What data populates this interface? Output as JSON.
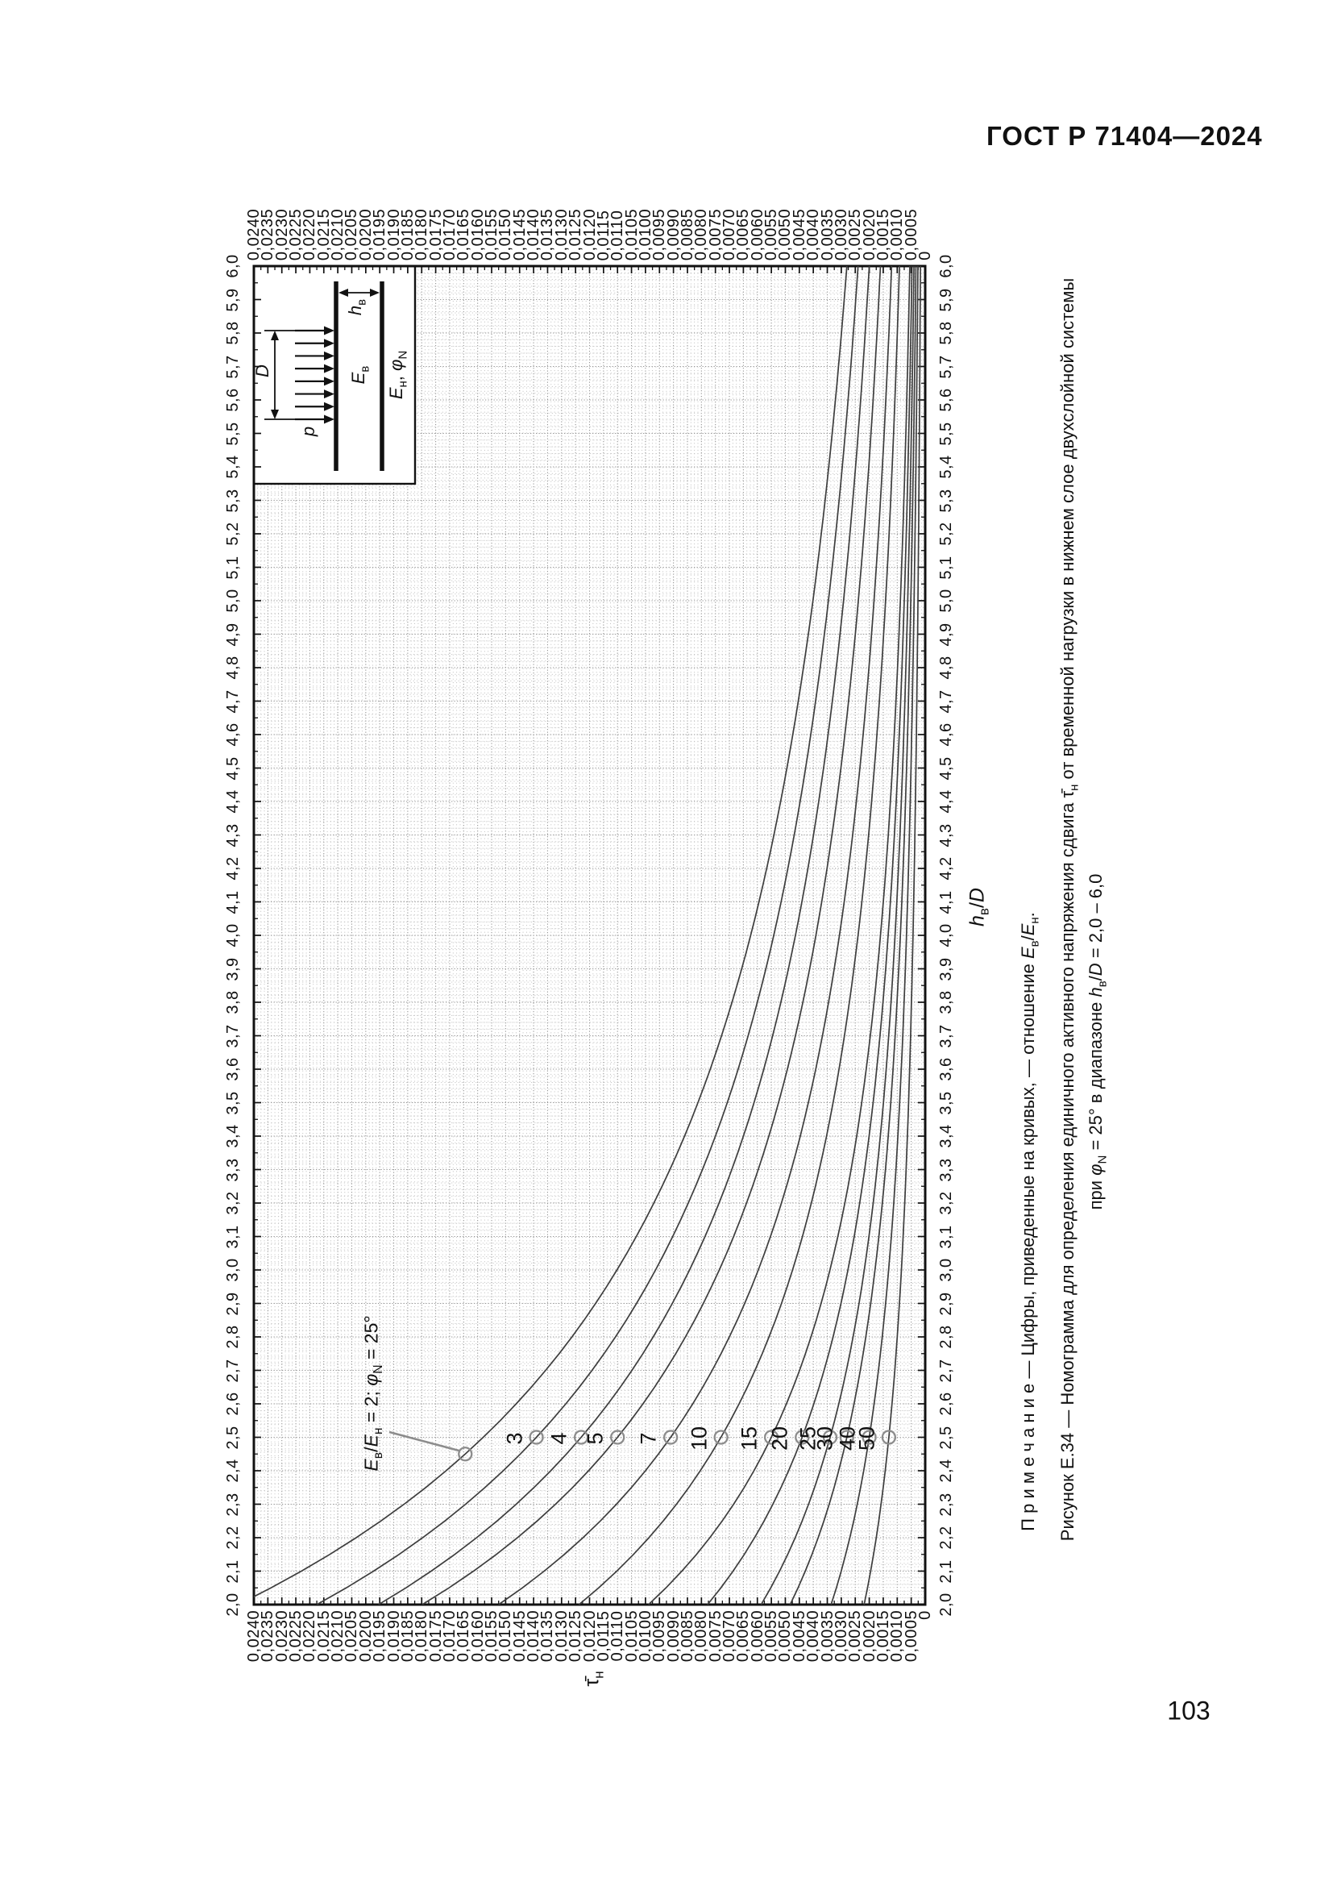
{
  "page": {
    "header": "ГОСТ Р 71404—2024",
    "page_number": "103"
  },
  "figure": {
    "note": "П р и м е ч а н и е — Цифры, приведенные на кривых, — отношение *E*_{в}/*E*_{н}.",
    "caption_line1": "Рисунок Е.34 — Номограмма для определения единичного активного напряжения сдвига  τ̄_{н}  от временной нагрузки в нижнем слое двухслойной системы",
    "caption_line2": "при *φ*_{N} = 25° в диапазоне *h*_{в}/*D* = 2,0 – 6,0",
    "annotation": "*E*_{в}/*E*_{н} = 2; *φ*_{N} = 25°"
  },
  "inset": {
    "load_label": "*p*",
    "diameter_label": "*D*",
    "upper_layer_label": "*E*_{в}",
    "lower_layer_label": "*E*_{н}, *φ*_{N}",
    "upper_thickness_label": "*h*_{в}"
  },
  "chart_data": {
    "type": "line",
    "orientation": "figure rotated 90° counterclockwise on page",
    "grid": "fine dotted",
    "legend_position": "labels on curves",
    "x_axis": {
      "label": "*h*_{в}/*D*",
      "min": 2.0,
      "max": 6.0,
      "step": 0.1,
      "tick_labels": [
        "6,0",
        "5,9",
        "5,8",
        "5,7",
        "5,6",
        "5,5",
        "5,4",
        "5,3",
        "5,2",
        "5,1",
        "5,0",
        "4,9",
        "4,8",
        "4,7",
        "4,6",
        "4,5",
        "4,4",
        "4,3",
        "4,2",
        "4,1",
        "4,0",
        "3,9",
        "3,8",
        "3,7",
        "3,6",
        "3,5",
        "3,4",
        "3,3",
        "3,2",
        "3,1",
        "3,0",
        "2,9",
        "2,8",
        "2,7",
        "2,6",
        "2,5",
        "2,4",
        "2,3",
        "2,2",
        "2,1",
        "2,0"
      ]
    },
    "y_axis": {
      "label": "τ̄_{н}",
      "min": 0,
      "max": 0.024,
      "step": 0.0005,
      "tick_labels": [
        "0,0240",
        "0,0235",
        "0,0230",
        "0,0225",
        "0,0220",
        "0,0215",
        "0,0210",
        "0,0205",
        "0,0200",
        "0,0195",
        "0,0190",
        "0,0185",
        "0,0180",
        "0,0175",
        "0,0170",
        "0,0165",
        "0,0160",
        "0,0155",
        "0,0150",
        "0,0145",
        "0,0140",
        "0,0135",
        "0,0130",
        "0,0125",
        "0,0120",
        "0,0115",
        "0,0110",
        "0,0105",
        "0,0100",
        "0,0095",
        "0,0090",
        "0,0085",
        "0,0080",
        "0,0075",
        "0,0070",
        "0,0065",
        "0,0060",
        "0,0055",
        "0,0050",
        "0,0045",
        "0,0040",
        "0,0035",
        "0,0030",
        "0,0025",
        "0,0020",
        "0,0015",
        "0,0010",
        "0,0005",
        "0"
      ]
    },
    "series_meaning": "Цифры на кривых — отношение Eв/Eн",
    "series": [
      {
        "ratio": "2",
        "tau_at_h2_5": 0.0158,
        "tau_at_h6_0": 0.0028,
        "marker_h": 2.45,
        "labeled_on_chart": false
      },
      {
        "ratio": "3",
        "tau_at_h2_5": 0.0139,
        "tau_at_h6_0": 0.0024,
        "marker_h": 2.5,
        "labeled_on_chart": true
      },
      {
        "ratio": "4",
        "tau_at_h2_5": 0.0123,
        "tau_at_h6_0": 0.002,
        "marker_h": 2.5,
        "labeled_on_chart": true
      },
      {
        "ratio": "5",
        "tau_at_h2_5": 0.011,
        "tau_at_h6_0": 0.0016,
        "marker_h": 2.5,
        "labeled_on_chart": true
      },
      {
        "ratio": "7",
        "tau_at_h2_5": 0.0091,
        "tau_at_h6_0": 0.0012,
        "marker_h": 2.5,
        "labeled_on_chart": true
      },
      {
        "ratio": "10",
        "tau_at_h2_5": 0.0073,
        "tau_at_h6_0": 0.00092,
        "marker_h": 2.5,
        "labeled_on_chart": true
      },
      {
        "ratio": "15",
        "tau_at_h2_5": 0.0055,
        "tau_at_h6_0": 0.00055,
        "marker_h": 2.5,
        "labeled_on_chart": true
      },
      {
        "ratio": "20",
        "tau_at_h2_5": 0.0044,
        "tau_at_h6_0": 0.00047,
        "marker_h": 2.5,
        "labeled_on_chart": true
      },
      {
        "ratio": "25",
        "tau_at_h2_5": 0.0034,
        "tau_at_h6_0": 0.0004,
        "marker_h": 2.5,
        "labeled_on_chart": true
      },
      {
        "ratio": "30",
        "tau_at_h2_5": 0.0028,
        "tau_at_h6_0": 0.00033,
        "marker_h": 2.5,
        "labeled_on_chart": true
      },
      {
        "ratio": "40",
        "tau_at_h2_5": 0.002,
        "tau_at_h6_0": 0.00026,
        "marker_h": 2.5,
        "labeled_on_chart": true
      },
      {
        "ratio": "50",
        "tau_at_h2_5": 0.0013,
        "tau_at_h6_0": 0.00017,
        "marker_h": 2.5,
        "labeled_on_chart": true
      }
    ],
    "colors": {
      "curve": "#3d3d3d",
      "frame": "#111111",
      "grid_minor": "#bfbfbf",
      "grid_major": "#969696",
      "marker": "#8c8c8c"
    }
  }
}
